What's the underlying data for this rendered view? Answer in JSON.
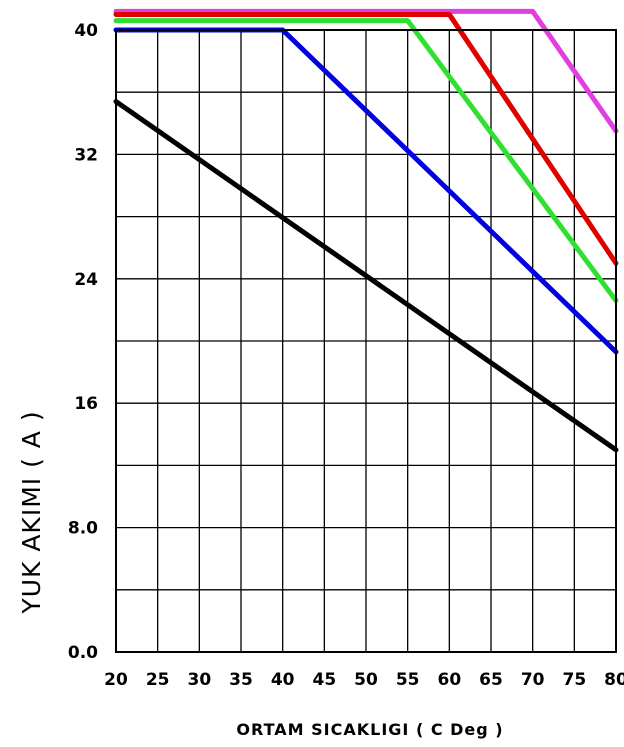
{
  "chart_data": {
    "type": "line",
    "title": "",
    "xlabel": "ORTAM SICAKLIGI ( C Deg )",
    "ylabel": "YUK AKIMI ( A )",
    "xlim": [
      20,
      80
    ],
    "ylim": [
      0,
      40
    ],
    "x_ticks": [
      "20",
      "25",
      "30",
      "35",
      "40",
      "45",
      "50",
      "55",
      "60",
      "65",
      "70",
      "75",
      "80"
    ],
    "y_ticks": [
      "0.0",
      "8.0",
      "16",
      "24",
      "32",
      "40"
    ],
    "grid": true,
    "series": [
      {
        "color": "#e040e0",
        "x": [
          20,
          70,
          80
        ],
        "y": [
          41.2,
          41.2,
          33.5
        ]
      },
      {
        "color": "#e00000",
        "x": [
          20,
          60,
          80
        ],
        "y": [
          41.0,
          41.0,
          25.0
        ]
      },
      {
        "color": "#30e030",
        "x": [
          20,
          55,
          80
        ],
        "y": [
          40.6,
          40.6,
          22.6
        ]
      },
      {
        "color": "#0000e0",
        "x": [
          20,
          40,
          80
        ],
        "y": [
          40.0,
          40.0,
          19.3
        ]
      },
      {
        "color": "#000000",
        "x": [
          20,
          80
        ],
        "y": [
          35.4,
          13.0
        ]
      }
    ]
  }
}
